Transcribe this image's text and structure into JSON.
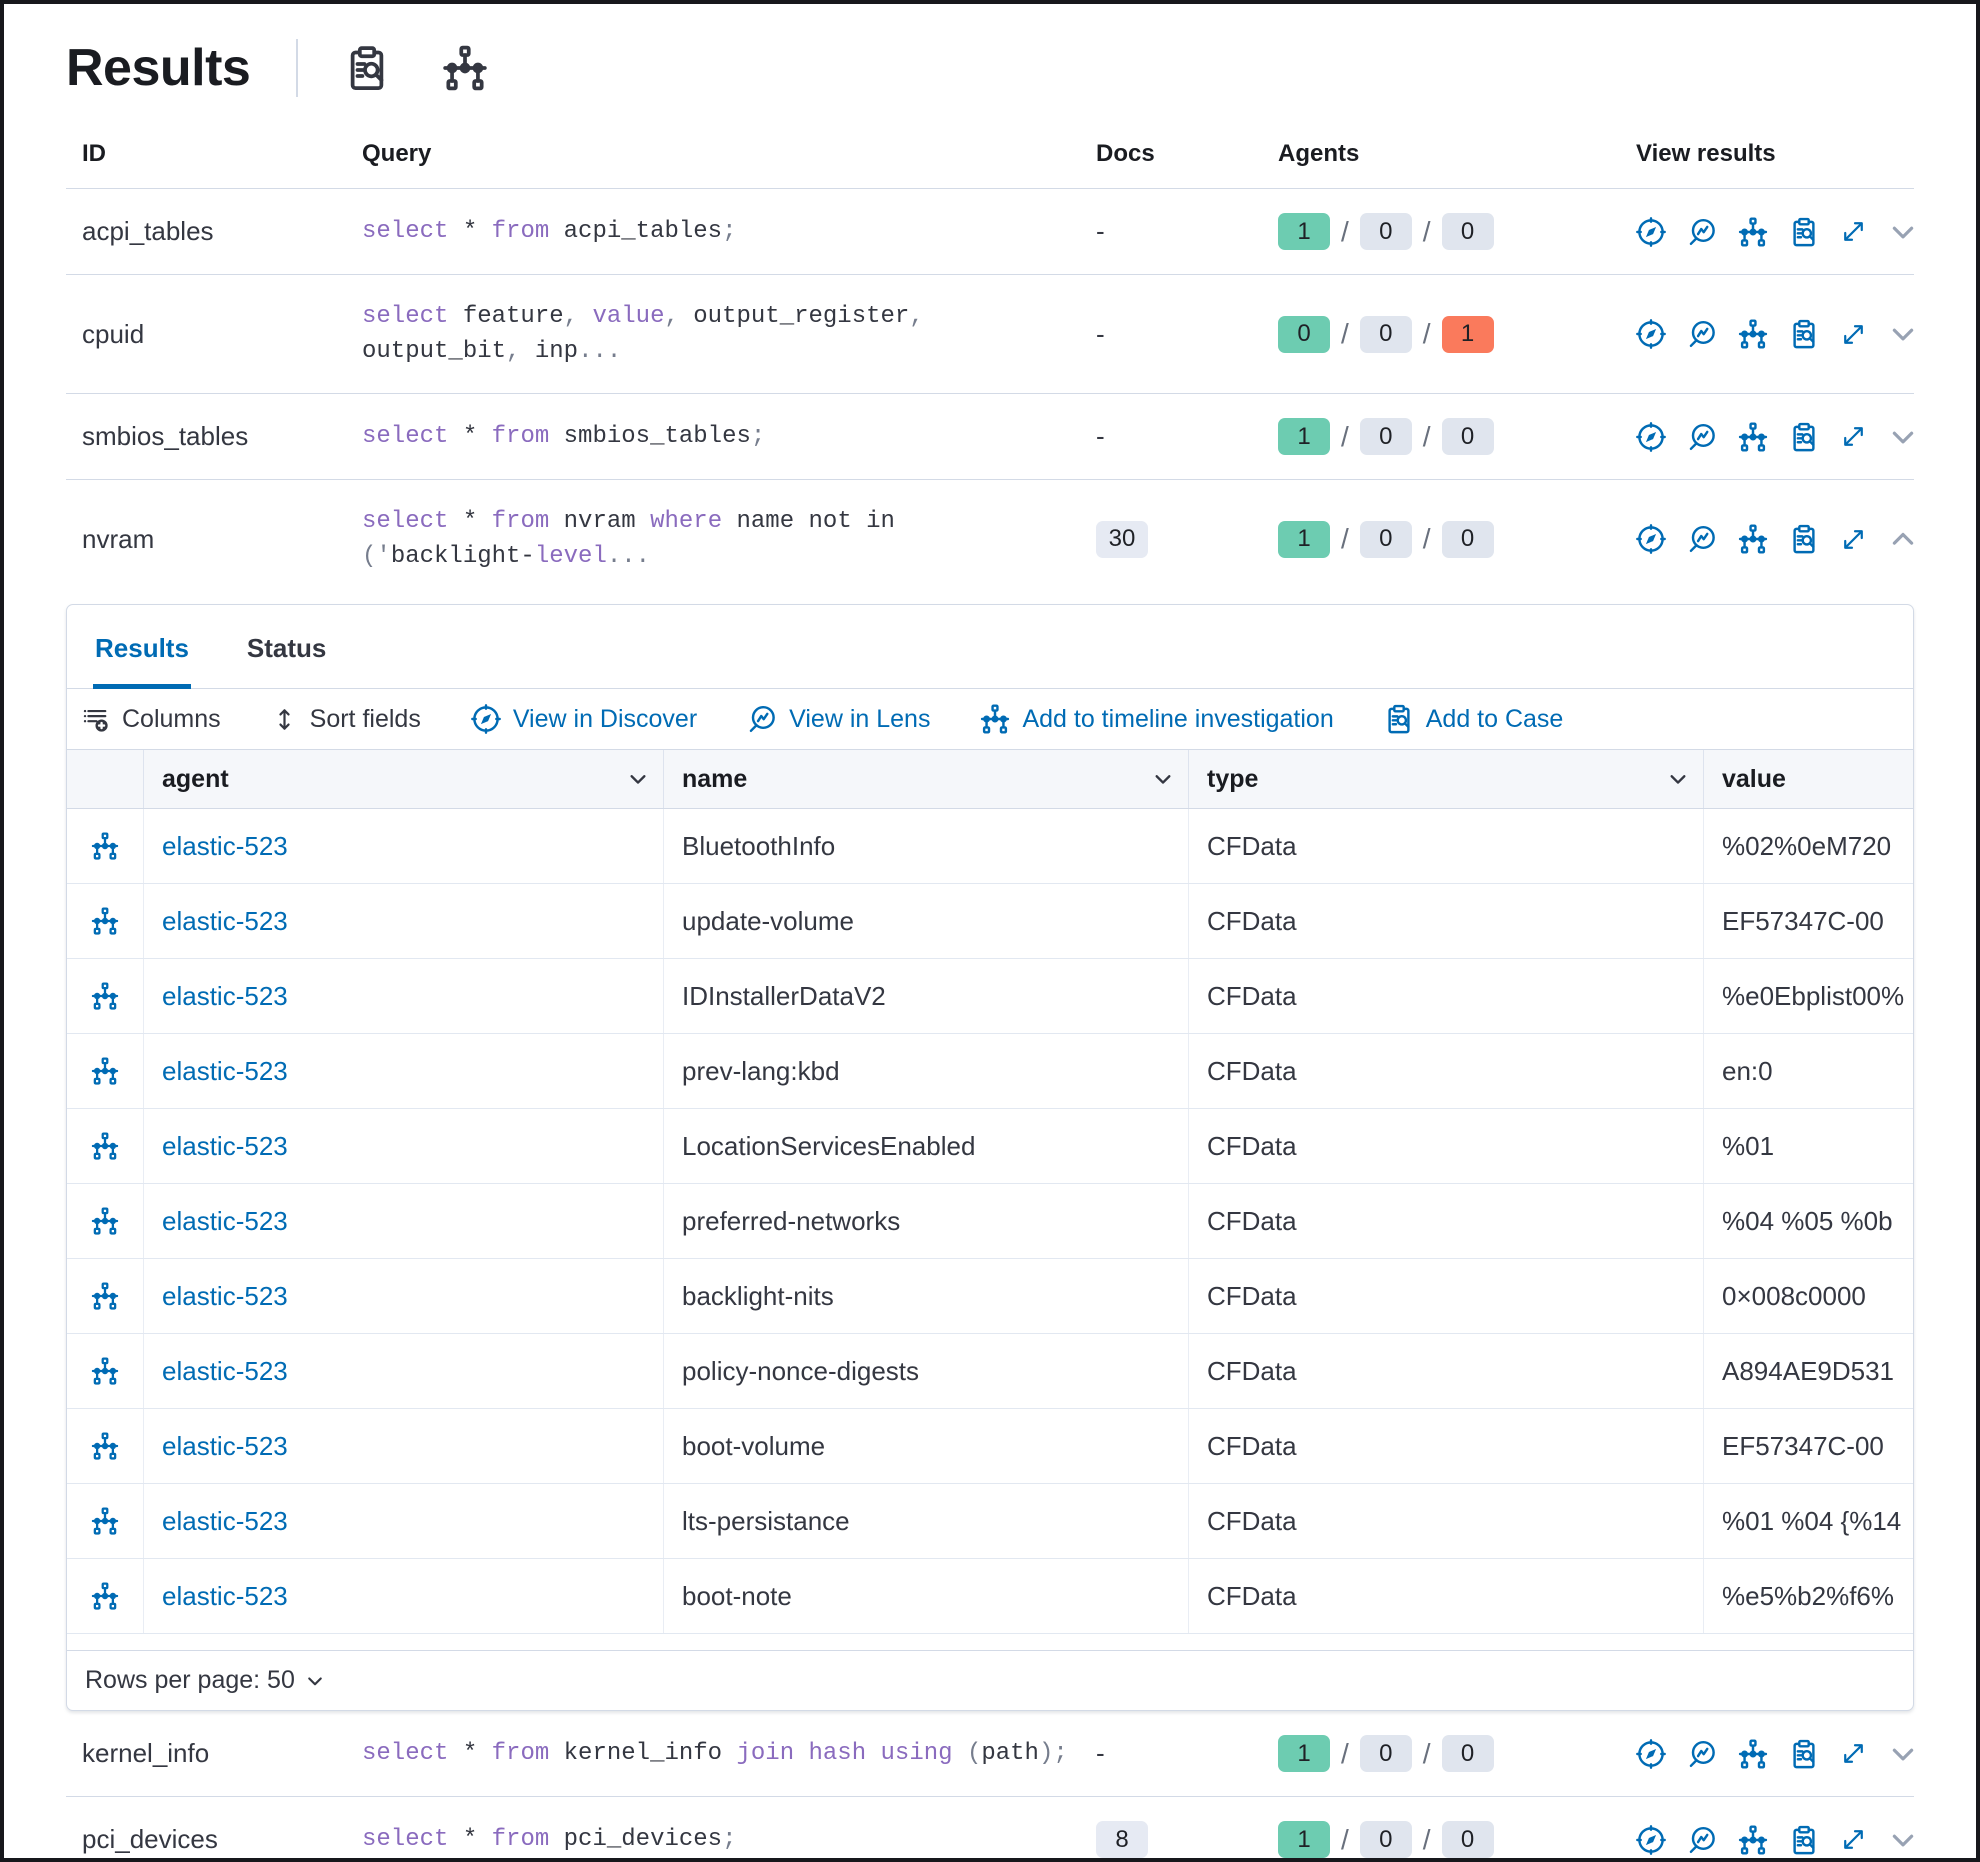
{
  "page": {
    "title": "Results"
  },
  "colors": {
    "primary_blue": "#006bb4",
    "keyword_purple": "#8a6bbe",
    "badge_green": "#6dccb1",
    "badge_gray": "#e0e5ee",
    "badge_red": "#fa7a5c",
    "border": "#d3dae6"
  },
  "table": {
    "columns": [
      "ID",
      "Query",
      "Docs",
      "Agents",
      "View results"
    ]
  },
  "queries": [
    {
      "id": "acpi_tables",
      "query": [
        [
          "select",
          "kw"
        ],
        [
          " * ",
          "tx"
        ],
        [
          "from",
          "kw"
        ],
        [
          " acpi_tables",
          "tx"
        ],
        [
          ";",
          "pu"
        ]
      ],
      "docs": "-",
      "docs_badge": false,
      "agents": [
        {
          "value": "1",
          "color": "green"
        },
        {
          "value": "0",
          "color": "gray"
        },
        {
          "value": "0",
          "color": "gray"
        }
      ],
      "expanded": false
    },
    {
      "id": "cpuid",
      "query": [
        [
          "select",
          "kw"
        ],
        [
          " feature",
          "tx"
        ],
        [
          ", ",
          "pu"
        ],
        [
          "value",
          "kw"
        ],
        [
          ", ",
          "pu"
        ],
        [
          "output_register",
          "tx"
        ],
        [
          ", ",
          "pu"
        ],
        [
          "output_bit",
          "tx"
        ],
        [
          ", ",
          "pu"
        ],
        [
          "inp",
          "tx"
        ],
        [
          "...",
          "pu"
        ]
      ],
      "docs": "-",
      "docs_badge": false,
      "agents": [
        {
          "value": "0",
          "color": "green"
        },
        {
          "value": "0",
          "color": "gray"
        },
        {
          "value": "1",
          "color": "red"
        }
      ],
      "expanded": false
    },
    {
      "id": "smbios_tables",
      "query": [
        [
          "select",
          "kw"
        ],
        [
          " * ",
          "tx"
        ],
        [
          "from",
          "kw"
        ],
        [
          " smbios_tables",
          "tx"
        ],
        [
          ";",
          "pu"
        ]
      ],
      "docs": "-",
      "docs_badge": false,
      "agents": [
        {
          "value": "1",
          "color": "green"
        },
        {
          "value": "0",
          "color": "gray"
        },
        {
          "value": "0",
          "color": "gray"
        }
      ],
      "expanded": false
    },
    {
      "id": "nvram",
      "query": [
        [
          "select",
          "kw"
        ],
        [
          " * ",
          "tx"
        ],
        [
          "from",
          "kw"
        ],
        [
          " nvram ",
          "tx"
        ],
        [
          "where",
          "kw"
        ],
        [
          " name not in ",
          "tx"
        ],
        [
          "('",
          "pu"
        ],
        [
          "backlight-",
          "tx"
        ],
        [
          "level",
          "kw"
        ],
        [
          "...",
          "pu"
        ]
      ],
      "docs": "30",
      "docs_badge": true,
      "agents": [
        {
          "value": "1",
          "color": "green"
        },
        {
          "value": "0",
          "color": "gray"
        },
        {
          "value": "0",
          "color": "gray"
        }
      ],
      "expanded": true
    },
    {
      "id": "kernel_info",
      "query": [
        [
          "select",
          "kw"
        ],
        [
          " * ",
          "tx"
        ],
        [
          "from",
          "kw"
        ],
        [
          " kernel_info ",
          "tx"
        ],
        [
          "join hash using",
          "kw"
        ],
        [
          " ",
          "tx"
        ],
        [
          "(",
          "pu"
        ],
        [
          "path",
          "tx"
        ],
        [
          ");",
          "pu"
        ]
      ],
      "docs": "-",
      "docs_badge": false,
      "agents": [
        {
          "value": "1",
          "color": "green"
        },
        {
          "value": "0",
          "color": "gray"
        },
        {
          "value": "0",
          "color": "gray"
        }
      ],
      "expanded": false
    },
    {
      "id": "pci_devices",
      "query": [
        [
          "select",
          "kw"
        ],
        [
          " * ",
          "tx"
        ],
        [
          "from",
          "kw"
        ],
        [
          " pci_devices",
          "tx"
        ],
        [
          ";",
          "pu"
        ]
      ],
      "docs": "8",
      "docs_badge": true,
      "agents": [
        {
          "value": "1",
          "color": "green"
        },
        {
          "value": "0",
          "color": "gray"
        },
        {
          "value": "0",
          "color": "gray"
        }
      ],
      "expanded": false
    }
  ],
  "results_panel": {
    "tabs": [
      {
        "label": "Results",
        "active": true
      },
      {
        "label": "Status",
        "active": false
      }
    ],
    "toolbar": [
      {
        "label": "Columns",
        "icon": "columns",
        "style": "dark"
      },
      {
        "label": "Sort fields",
        "icon": "sort",
        "style": "dark"
      },
      {
        "label": "View in Discover",
        "icon": "discover",
        "style": "blue"
      },
      {
        "label": "View in Lens",
        "icon": "lens",
        "style": "blue"
      },
      {
        "label": "Add to timeline investigation",
        "icon": "timeline",
        "style": "blue"
      },
      {
        "label": "Add to Case",
        "icon": "case",
        "style": "blue"
      }
    ],
    "grid": {
      "columns": [
        {
          "label": "agent",
          "sortable": true
        },
        {
          "label": "name",
          "sortable": true
        },
        {
          "label": "type",
          "sortable": true
        },
        {
          "label": "value",
          "sortable": false
        }
      ],
      "rows": [
        {
          "agent": "elastic-523",
          "name": "BluetoothInfo",
          "type": "CFData",
          "value": "%02%0eM720"
        },
        {
          "agent": "elastic-523",
          "name": "update-volume",
          "type": "CFData",
          "value": "EF57347C-00"
        },
        {
          "agent": "elastic-523",
          "name": "IDInstallerDataV2",
          "type": "CFData",
          "value": "%e0Ebplist00%"
        },
        {
          "agent": "elastic-523",
          "name": "prev-lang:kbd",
          "type": "CFData",
          "value": "en:0"
        },
        {
          "agent": "elastic-523",
          "name": "LocationServicesEnabled",
          "type": "CFData",
          "value": "%01"
        },
        {
          "agent": "elastic-523",
          "name": "preferred-networks",
          "type": "CFData",
          "value": "%04 %05 %0b"
        },
        {
          "agent": "elastic-523",
          "name": "backlight-nits",
          "type": "CFData",
          "value": "0×008c0000"
        },
        {
          "agent": "elastic-523",
          "name": "policy-nonce-digests",
          "type": "CFData",
          "value": "A894AE9D531"
        },
        {
          "agent": "elastic-523",
          "name": "boot-volume",
          "type": "CFData",
          "value": "EF57347C-00"
        },
        {
          "agent": "elastic-523",
          "name": "lts-persistance",
          "type": "CFData",
          "value": "%01 %04 {%14"
        },
        {
          "agent": "elastic-523",
          "name": "boot-note",
          "type": "CFData",
          "value": "%e5%b2%f6%"
        }
      ]
    },
    "footer": {
      "rows_per_page": "Rows per page: 50"
    }
  }
}
